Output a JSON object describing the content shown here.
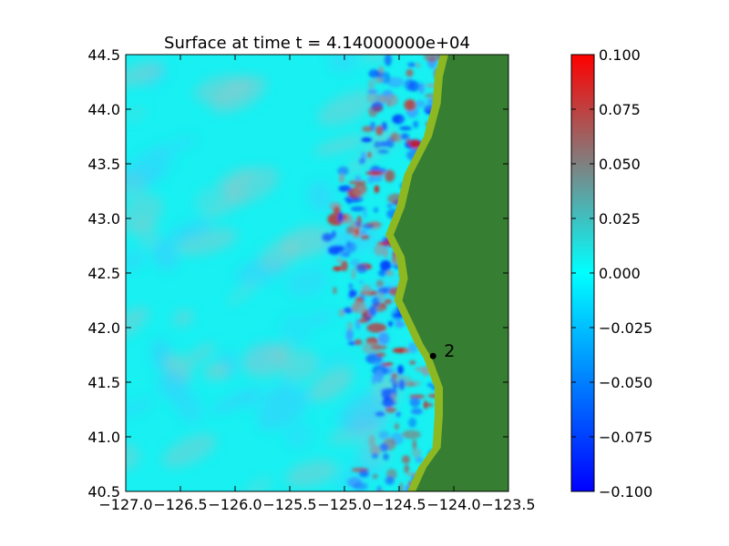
{
  "chart_data": {
    "type": "heatmap",
    "title": "Surface at time t = 4.14000000e+04",
    "xlabel": "",
    "ylabel": "",
    "xlim": [
      -127.0,
      -123.5
    ],
    "ylim": [
      40.5,
      44.5
    ],
    "x_ticks": [
      -127.0,
      -126.5,
      -126.0,
      -125.5,
      -125.0,
      -124.5,
      -124.0,
      -123.5
    ],
    "x_tick_labels": [
      "−127.0",
      "−126.5",
      "−126.0",
      "−125.5",
      "−125.0",
      "−124.5",
      "−124.0",
      "−123.5"
    ],
    "y_ticks": [
      40.5,
      41.0,
      41.5,
      42.0,
      42.5,
      43.0,
      43.5,
      44.0,
      44.5
    ],
    "y_tick_labels": [
      "40.5",
      "41.0",
      "41.5",
      "42.0",
      "42.5",
      "43.0",
      "43.5",
      "44.0",
      "44.5"
    ],
    "colorbar": {
      "range": [
        -0.1,
        0.1
      ],
      "ticks": [
        -0.1,
        -0.075,
        -0.05,
        -0.025,
        0.0,
        0.025,
        0.05,
        0.075,
        0.1
      ],
      "tick_labels": [
        "−0.100",
        "−0.075",
        "−0.050",
        "−0.025",
        "0.000",
        "0.025",
        "0.050",
        "0.075",
        "0.100"
      ],
      "colors": [
        "#0000ff",
        "#00ffff",
        "#ff0000"
      ]
    },
    "grid": false,
    "legend": "none",
    "gauges": [
      {
        "label": "2",
        "lon": -124.19,
        "lat": 41.74
      }
    ],
    "coastline": [
      [
        -124.05,
        44.5
      ],
      [
        -124.1,
        44.3
      ],
      [
        -124.12,
        44.05
      ],
      [
        -124.2,
        43.75
      ],
      [
        -124.38,
        43.4
      ],
      [
        -124.45,
        43.1
      ],
      [
        -124.55,
        42.85
      ],
      [
        -124.45,
        42.65
      ],
      [
        -124.42,
        42.45
      ],
      [
        -124.47,
        42.25
      ],
      [
        -124.35,
        42.0
      ],
      [
        -124.28,
        41.85
      ],
      [
        -124.2,
        41.72
      ],
      [
        -124.1,
        41.45
      ],
      [
        -124.1,
        41.2
      ],
      [
        -124.12,
        40.9
      ],
      [
        -124.25,
        40.72
      ],
      [
        -124.35,
        40.5
      ]
    ],
    "colors": {
      "ocean_base": "#18f0f2",
      "land": "#367f32",
      "shore": "#8db822",
      "gauge": "#000000"
    }
  }
}
